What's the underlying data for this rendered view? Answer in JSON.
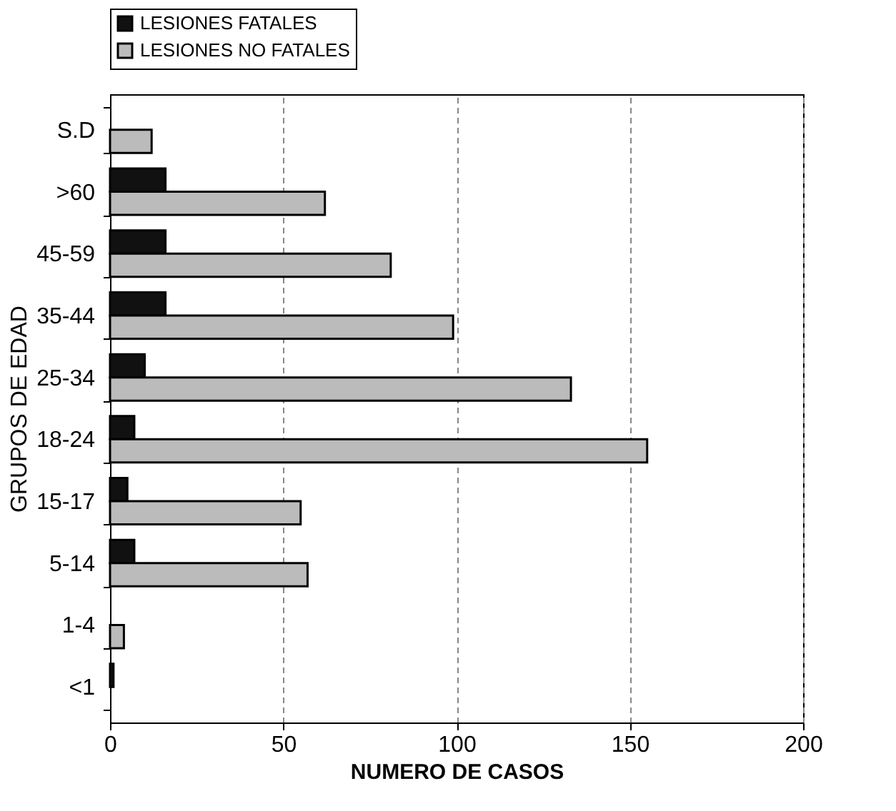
{
  "chart_data": {
    "type": "bar",
    "orientation": "horizontal",
    "xlabel": "NUMERO DE CASOS",
    "ylabel": "GRUPOS DE EDAD",
    "categories": [
      "S.D",
      ">60",
      "45-59",
      "35-44",
      "25-34",
      "18-24",
      "15-17",
      "5-14",
      "1-4",
      "<1"
    ],
    "series": [
      {
        "name": "LESIONES FATALES",
        "color": "#111111",
        "values": [
          0,
          16,
          16,
          16,
          10,
          7,
          5,
          7,
          0,
          1
        ]
      },
      {
        "name": "LESIONES NO FATALES",
        "color": "#bbbbbb",
        "values": [
          12,
          62,
          81,
          99,
          133,
          155,
          55,
          57,
          4,
          0
        ]
      }
    ],
    "xlim": [
      0,
      200
    ],
    "xticks": [
      0,
      50,
      100,
      150,
      200
    ],
    "grid": "x",
    "legend": "top"
  }
}
